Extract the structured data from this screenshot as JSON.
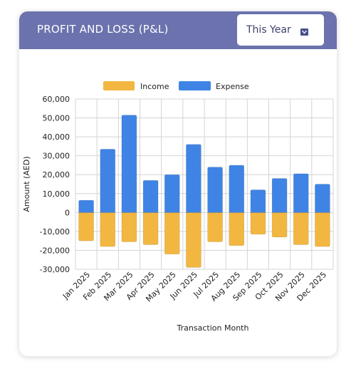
{
  "header": {
    "title": "PROFIT AND LOSS (P&L)",
    "period": "This Year"
  },
  "colors": {
    "header": "#6b72ad",
    "income": "#f2b740",
    "expense": "#3f84e5",
    "grid": "#d4d4d4"
  },
  "chart_data": {
    "type": "bar",
    "stacked": true,
    "categories": [
      "Jan 2025",
      "Feb 2025",
      "Mar 2025",
      "Apr 2025",
      "May 2025",
      "Jun 2025",
      "Jul 2025",
      "Aug 2025",
      "Sep 2025",
      "Oct 2025",
      "Nov 2025",
      "Dec 2025"
    ],
    "series": [
      {
        "name": "Income",
        "color": "#f2b740",
        "values": [
          -15000,
          -18000,
          -15500,
          -17000,
          -22000,
          -29000,
          -15500,
          -17500,
          -11500,
          -13000,
          -17000,
          -18000
        ]
      },
      {
        "name": "Expense",
        "color": "#3f84e5",
        "values": [
          6500,
          33500,
          51500,
          17000,
          20000,
          36000,
          24000,
          25000,
          12000,
          18000,
          20500,
          15000
        ]
      }
    ],
    "xlabel": "Transaction Month",
    "ylabel": "Amount (AED)",
    "ylim": [
      -30000,
      60000
    ],
    "yticks": [
      60000,
      50000,
      40000,
      30000,
      20000,
      10000,
      0,
      -10000,
      -20000,
      -30000
    ],
    "ytick_labels": [
      "60,000",
      "50,000",
      "40,000",
      "30,000",
      "20,000",
      "10,000",
      "0",
      "-10,000",
      "-20,000",
      "-30,000"
    ],
    "grid": true,
    "legend_position": "top-center"
  }
}
